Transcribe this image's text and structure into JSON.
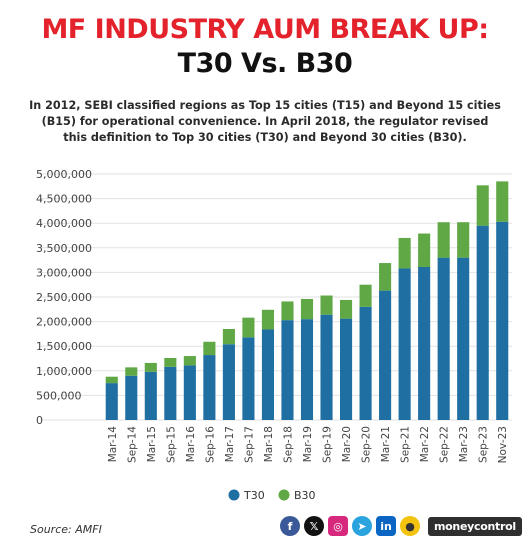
{
  "header": {
    "title_line1": "MF INDUSTRY AUM BREAK UP:",
    "title_line2": "T30 Vs. B30",
    "subtitle": "In 2012, SEBI classified regions as Top 15 cities (T15) and Beyond 15 cities (B15) for operational convenience. In April 2018, the regulator revised this definition to Top 30 cities (T30) and Beyond 30 cities (B30)."
  },
  "chart_data": {
    "type": "bar",
    "stacked": true,
    "categories": [
      "Mar-14",
      "Sep-14",
      "Mar-15",
      "Sep-15",
      "Mar-16",
      "Sep-16",
      "Mar-17",
      "Sep-17",
      "Mar-18",
      "Sep-18",
      "Mar-19",
      "Sep-19",
      "Mar-20",
      "Sep-20",
      "Mar-21",
      "Sep-21",
      "Mar-22",
      "Sep-22",
      "Mar-23",
      "Sep-23",
      "Nov-23"
    ],
    "series": [
      {
        "name": "T30",
        "color": "#1f6fa3",
        "values": [
          750000,
          900000,
          980000,
          1080000,
          1110000,
          1320000,
          1540000,
          1680000,
          1840000,
          2030000,
          2050000,
          2140000,
          2060000,
          2300000,
          2630000,
          3080000,
          3110000,
          3300000,
          3300000,
          3950000,
          4030000
        ]
      },
      {
        "name": "B30",
        "color": "#5fa845",
        "values": [
          130000,
          170000,
          180000,
          180000,
          190000,
          270000,
          310000,
          400000,
          400000,
          380000,
          410000,
          390000,
          380000,
          450000,
          560000,
          620000,
          680000,
          720000,
          720000,
          820000,
          820000
        ]
      }
    ],
    "y_ticks": [
      "5,000,000",
      "4,500,000",
      "4,000,000",
      "3,500,000",
      "3,000,000",
      "2,500,000",
      "2,000,000",
      "1,500,000",
      "1,000,000",
      "500,000",
      "0"
    ],
    "ylim": [
      0,
      5000000
    ],
    "grid": true,
    "legend": "bottom-center"
  },
  "footer": {
    "source": "Source: AMFI",
    "brand": "moneycontrol",
    "social_icons": [
      "facebook-icon",
      "x-icon",
      "instagram-icon",
      "telegram-icon",
      "linkedin-icon",
      "koo-icon"
    ]
  }
}
